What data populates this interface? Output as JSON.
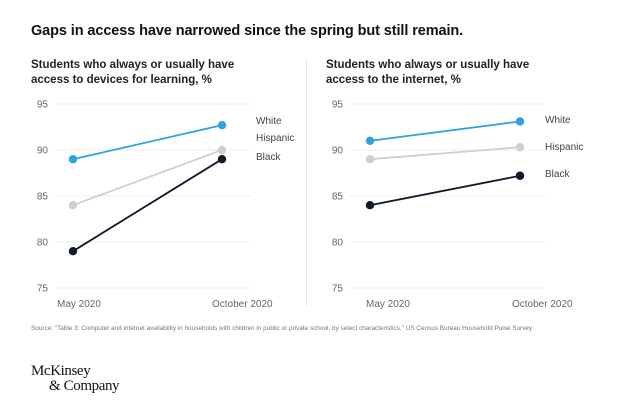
{
  "title": "Gaps in access have narrowed since the spring but still remain.",
  "source": "Source: \"Table 3: Computer and internet availability in households with children in public or private school, by select characteristics,\" US Census Bureau Household Pulse Survey",
  "logo": {
    "line1": "McKinsey",
    "line2": "& Company"
  },
  "colors": {
    "White": "#2ea3dd",
    "Hispanic": "#cfcfcf",
    "Black": "#0f1a2b"
  },
  "chart_data": [
    {
      "type": "line",
      "title": "Students who always or usually have access to devices for learning, %",
      "xlabel": "",
      "ylabel": "%",
      "categories": [
        "May 2020",
        "October 2020"
      ],
      "yticks": [
        75,
        80,
        85,
        90,
        95
      ],
      "ylim": [
        75,
        95
      ],
      "grid": true,
      "legend": "right",
      "series": [
        {
          "name": "White",
          "values": [
            89,
            92.7
          ]
        },
        {
          "name": "Hispanic",
          "values": [
            84,
            90
          ]
        },
        {
          "name": "Black",
          "values": [
            79,
            89
          ]
        }
      ]
    },
    {
      "type": "line",
      "title": "Students who always or usually have access to the internet, %",
      "xlabel": "",
      "ylabel": "%",
      "categories": [
        "May 2020",
        "October 2020"
      ],
      "yticks": [
        75,
        80,
        85,
        90,
        95
      ],
      "ylim": [
        75,
        95
      ],
      "grid": true,
      "legend": "right",
      "series": [
        {
          "name": "White",
          "values": [
            91,
            93.1
          ]
        },
        {
          "name": "Hispanic",
          "values": [
            89,
            90.3
          ]
        },
        {
          "name": "Black",
          "values": [
            84,
            87.2
          ]
        }
      ]
    }
  ]
}
